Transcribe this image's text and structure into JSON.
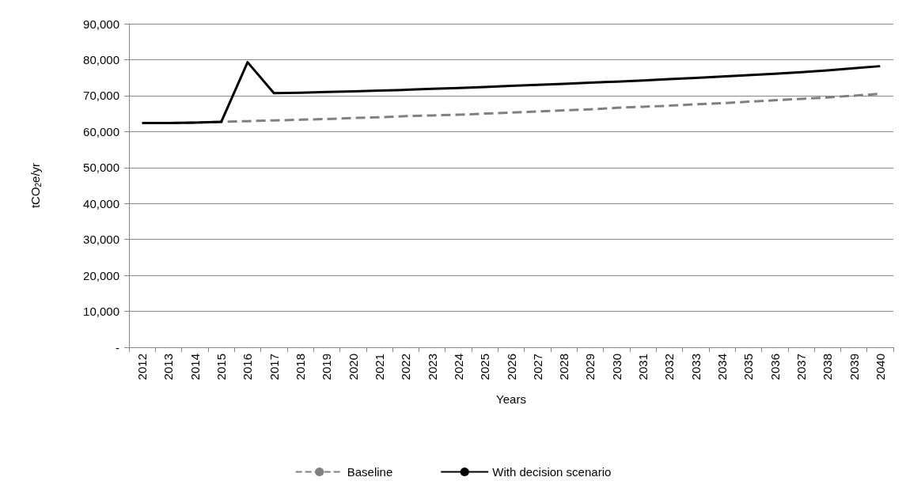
{
  "chart_data": {
    "type": "line",
    "xlabel": "Years",
    "ylabel": "tCO$_{2}$e/yr",
    "categories": [
      "2012",
      "2013",
      "2014",
      "2015",
      "2016",
      "2017",
      "2018",
      "2019",
      "2020",
      "2021",
      "2022",
      "2023",
      "2024",
      "2025",
      "2026",
      "2027",
      "2028",
      "2029",
      "2030",
      "2031",
      "2032",
      "2033",
      "2034",
      "2035",
      "2036",
      "2037",
      "2038",
      "2039",
      "2040"
    ],
    "series": [
      {
        "name": "Baseline",
        "color": "#808080",
        "line_style": "dashed",
        "values": [
          62400,
          62400,
          62500,
          62700,
          62900,
          63100,
          63300,
          63500,
          63800,
          64000,
          64300,
          64500,
          64700,
          65000,
          65300,
          65600,
          65900,
          66200,
          66600,
          66900,
          67200,
          67600,
          67900,
          68300,
          68700,
          69100,
          69500,
          70000,
          70500
        ]
      },
      {
        "name": "With decision scenario",
        "color": "#000000",
        "line_style": "solid",
        "values": [
          62400,
          62400,
          62500,
          62700,
          79300,
          70700,
          70800,
          71000,
          71200,
          71400,
          71600,
          71900,
          72100,
          72400,
          72700,
          73000,
          73300,
          73600,
          73900,
          74200,
          74600,
          74900,
          75300,
          75700,
          76100,
          76500,
          77000,
          77600,
          78200
        ]
      }
    ],
    "ylim": [
      0,
      90000
    ],
    "yticks": [
      {
        "value": 0,
        "label": "-"
      },
      {
        "value": 10000,
        "label": "10,000"
      },
      {
        "value": 20000,
        "label": "20,000"
      },
      {
        "value": 30000,
        "label": "30,000"
      },
      {
        "value": 40000,
        "label": "40,000"
      },
      {
        "value": 50000,
        "label": "50,000"
      },
      {
        "value": 60000,
        "label": "60,000"
      },
      {
        "value": 70000,
        "label": "70,000"
      },
      {
        "value": 80000,
        "label": "80,000"
      },
      {
        "value": 90000,
        "label": "90,000"
      }
    ],
    "grid": "y",
    "legend": "bottom",
    "marker": "none"
  }
}
